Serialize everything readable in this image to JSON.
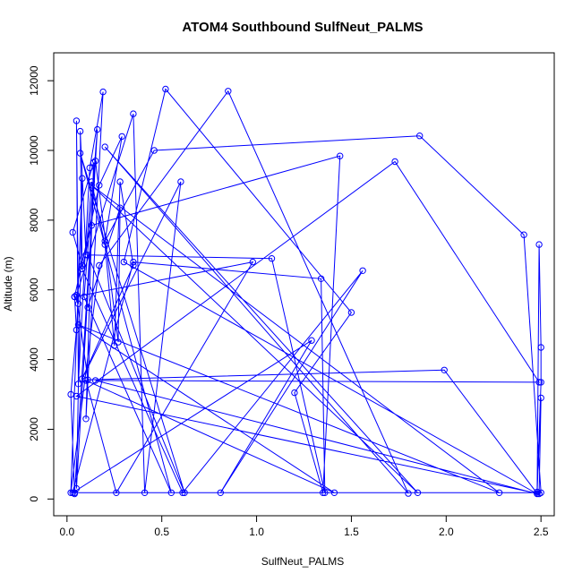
{
  "chart_data": {
    "type": "line",
    "title": "ATOM4 Southbound SulfNeut_PALMS",
    "xlabel": "SulfNeut_PALMS",
    "ylabel": "Altitude (m)",
    "xlim": [
      -0.07,
      2.57
    ],
    "ylim": [
      -480,
      12800
    ],
    "xticks": [
      0.0,
      0.5,
      1.0,
      1.5,
      2.0,
      2.5
    ],
    "xtick_labels": [
      "0.0",
      "0.5",
      "1.0",
      "1.5",
      "2.0",
      "2.5"
    ],
    "yticks": [
      0,
      2000,
      4000,
      6000,
      8000,
      10000,
      12000
    ],
    "ytick_labels": [
      "0",
      "2000",
      "4000",
      "6000",
      "8000",
      "10000",
      "12000"
    ],
    "grid": false,
    "style": {
      "line_color": "#0000ff",
      "marker": "open-circle"
    },
    "series": [
      {
        "points": [
          [
            0.04,
            150
          ],
          [
            0.02,
            3000
          ],
          [
            0.05,
            4850
          ],
          [
            0.04,
            5800
          ],
          [
            0.06,
            5600
          ],
          [
            0.05,
            10850
          ],
          [
            0.06,
            3300
          ],
          [
            0.12,
            9500
          ],
          [
            0.19,
            11680
          ],
          [
            0.1,
            2300
          ],
          [
            0.14,
            9650
          ],
          [
            0.03,
            7650
          ],
          [
            0.08,
            6700
          ],
          [
            0.07,
            10550
          ],
          [
            0.1,
            7000
          ],
          [
            0.13,
            9100
          ],
          [
            0.2,
            7300
          ],
          [
            0.25,
            4400
          ],
          [
            0.28,
            9100
          ],
          [
            0.35,
            6700
          ],
          [
            0.08,
            3450
          ],
          [
            0.6,
            9100
          ],
          [
            0.41,
            180
          ],
          [
            0.35,
            11050
          ],
          [
            0.05,
            5850
          ],
          [
            0.11,
            3420
          ],
          [
            1.99,
            3700
          ],
          [
            2.48,
            160
          ],
          [
            2.49,
            7300
          ],
          [
            2.5,
            4350
          ],
          [
            2.5,
            3350
          ],
          [
            2.48,
            200
          ],
          [
            2.5,
            2900
          ],
          [
            2.49,
            150
          ],
          [
            0.05,
            2950
          ],
          [
            1.73,
            9680
          ],
          [
            2.49,
            3350
          ],
          [
            0.15,
            3400
          ],
          [
            2.48,
            150
          ],
          [
            0.3,
            6800
          ],
          [
            0.52,
            11760
          ],
          [
            1.5,
            5350
          ],
          [
            1.2,
            3050
          ],
          [
            1.35,
            180
          ],
          [
            1.44,
            9840
          ],
          [
            0.13,
            7850
          ],
          [
            0.08,
            6600
          ],
          [
            0.61,
            180
          ],
          [
            1.56,
            6550
          ],
          [
            0.81,
            180
          ],
          [
            1.29,
            4550
          ],
          [
            0.03,
            180
          ],
          [
            0.35,
            6800
          ],
          [
            1.34,
            6320
          ],
          [
            1.36,
            180
          ],
          [
            1.08,
            6900
          ],
          [
            0.11,
            7000
          ],
          [
            0.62,
            180
          ],
          [
            0.07,
            9920
          ],
          [
            0.55,
            180
          ],
          [
            0.09,
            5800
          ],
          [
            0.16,
            10600
          ],
          [
            0.05,
            300
          ],
          [
            0.08,
            9200
          ],
          [
            0.02,
            180
          ],
          [
            0.17,
            6700
          ],
          [
            0.85,
            11700
          ],
          [
            1.8,
            160
          ],
          [
            0.2,
            10100
          ],
          [
            1.85,
            180
          ],
          [
            0.13,
            9000
          ],
          [
            2.28,
            180
          ],
          [
            0.06,
            5000
          ],
          [
            1.41,
            180
          ],
          [
            0.1,
            3400
          ],
          [
            0.26,
            180
          ],
          [
            0.98,
            6800
          ],
          [
            0.04,
            5800
          ],
          [
            0.17,
            9000
          ],
          [
            0.29,
            10400
          ],
          [
            0.2,
            7400
          ],
          [
            0.46,
            10000
          ],
          [
            1.86,
            10420
          ],
          [
            2.41,
            7580
          ],
          [
            2.5,
            180
          ],
          [
            0.04,
            180
          ],
          [
            0.15,
            9700
          ],
          [
            0.27,
            4500
          ],
          [
            0.28,
            8350
          ],
          [
            0.11,
            5500
          ]
        ]
      }
    ]
  }
}
